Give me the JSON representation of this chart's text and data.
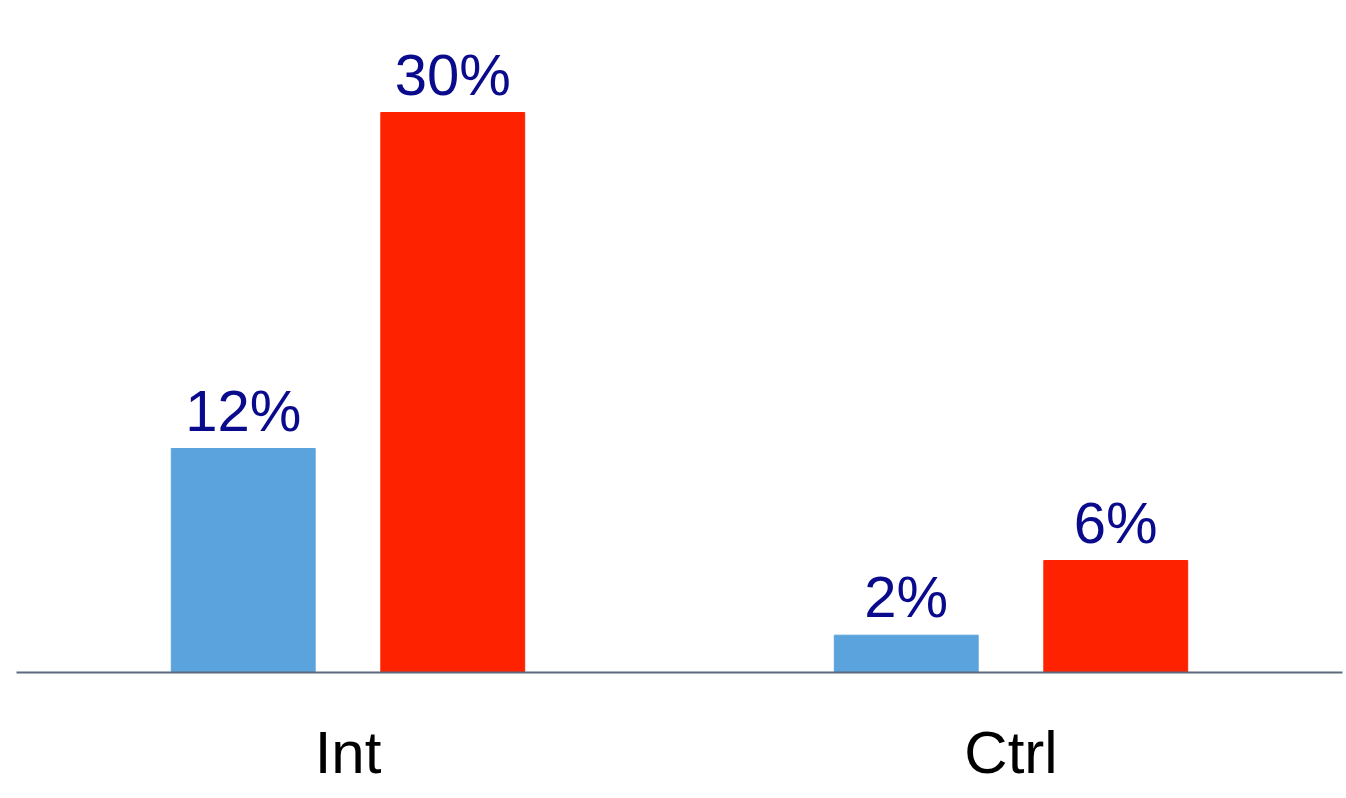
{
  "chart_data": {
    "type": "bar",
    "categories": [
      "Int",
      "Ctrl"
    ],
    "series": [
      {
        "color": "#5ba3dc",
        "values": [
          12,
          2
        ],
        "value_labels": [
          "12%",
          "2%"
        ]
      },
      {
        "color": "#ff2200",
        "values": [
          30,
          6
        ],
        "value_labels": [
          "30%",
          "6%"
        ]
      }
    ]
  }
}
